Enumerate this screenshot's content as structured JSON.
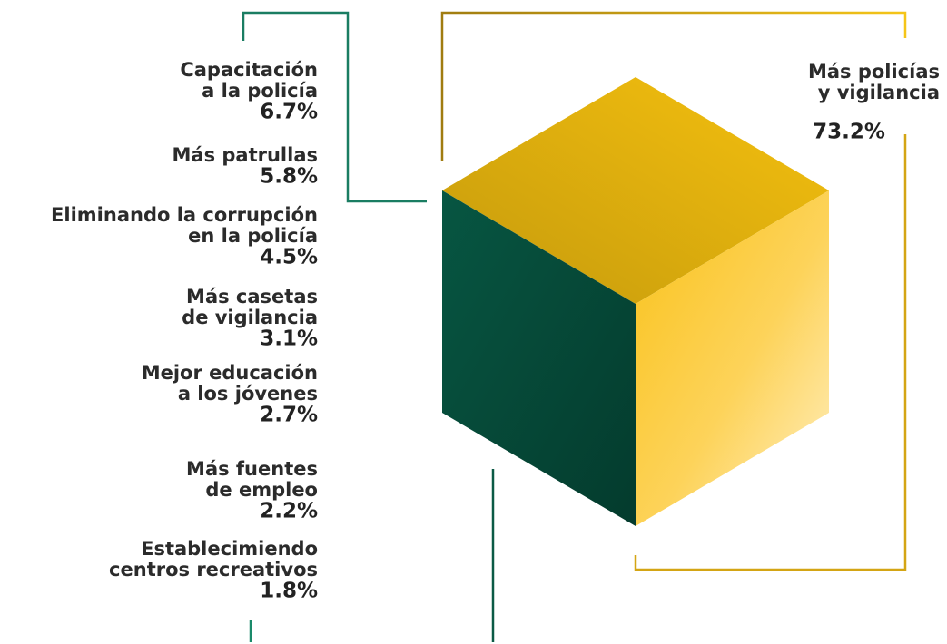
{
  "items": [
    {
      "label": [
        "Capacitación",
        "a la policía"
      ],
      "value": "6.7%"
    },
    {
      "label": [
        "Más patrullas"
      ],
      "value": "5.8%"
    },
    {
      "label": [
        "Eliminando la corrupción",
        "en la policía"
      ],
      "value": "4.5%"
    },
    {
      "label": [
        "Más casetas",
        "de vigilancia"
      ],
      "value": "3.1%"
    },
    {
      "label": [
        "Mejor educación",
        "a los jóvenes"
      ],
      "value": "2.7%"
    },
    {
      "label": [
        "Más fuentes",
        "de empleo"
      ],
      "value": "2.2%"
    },
    {
      "label": [
        "Establecimiendo",
        "centros recreativos"
      ],
      "value": "1.8%"
    }
  ],
  "main": {
    "label": [
      "Más policías",
      "y vigilancia"
    ],
    "value": "73.2%"
  }
}
